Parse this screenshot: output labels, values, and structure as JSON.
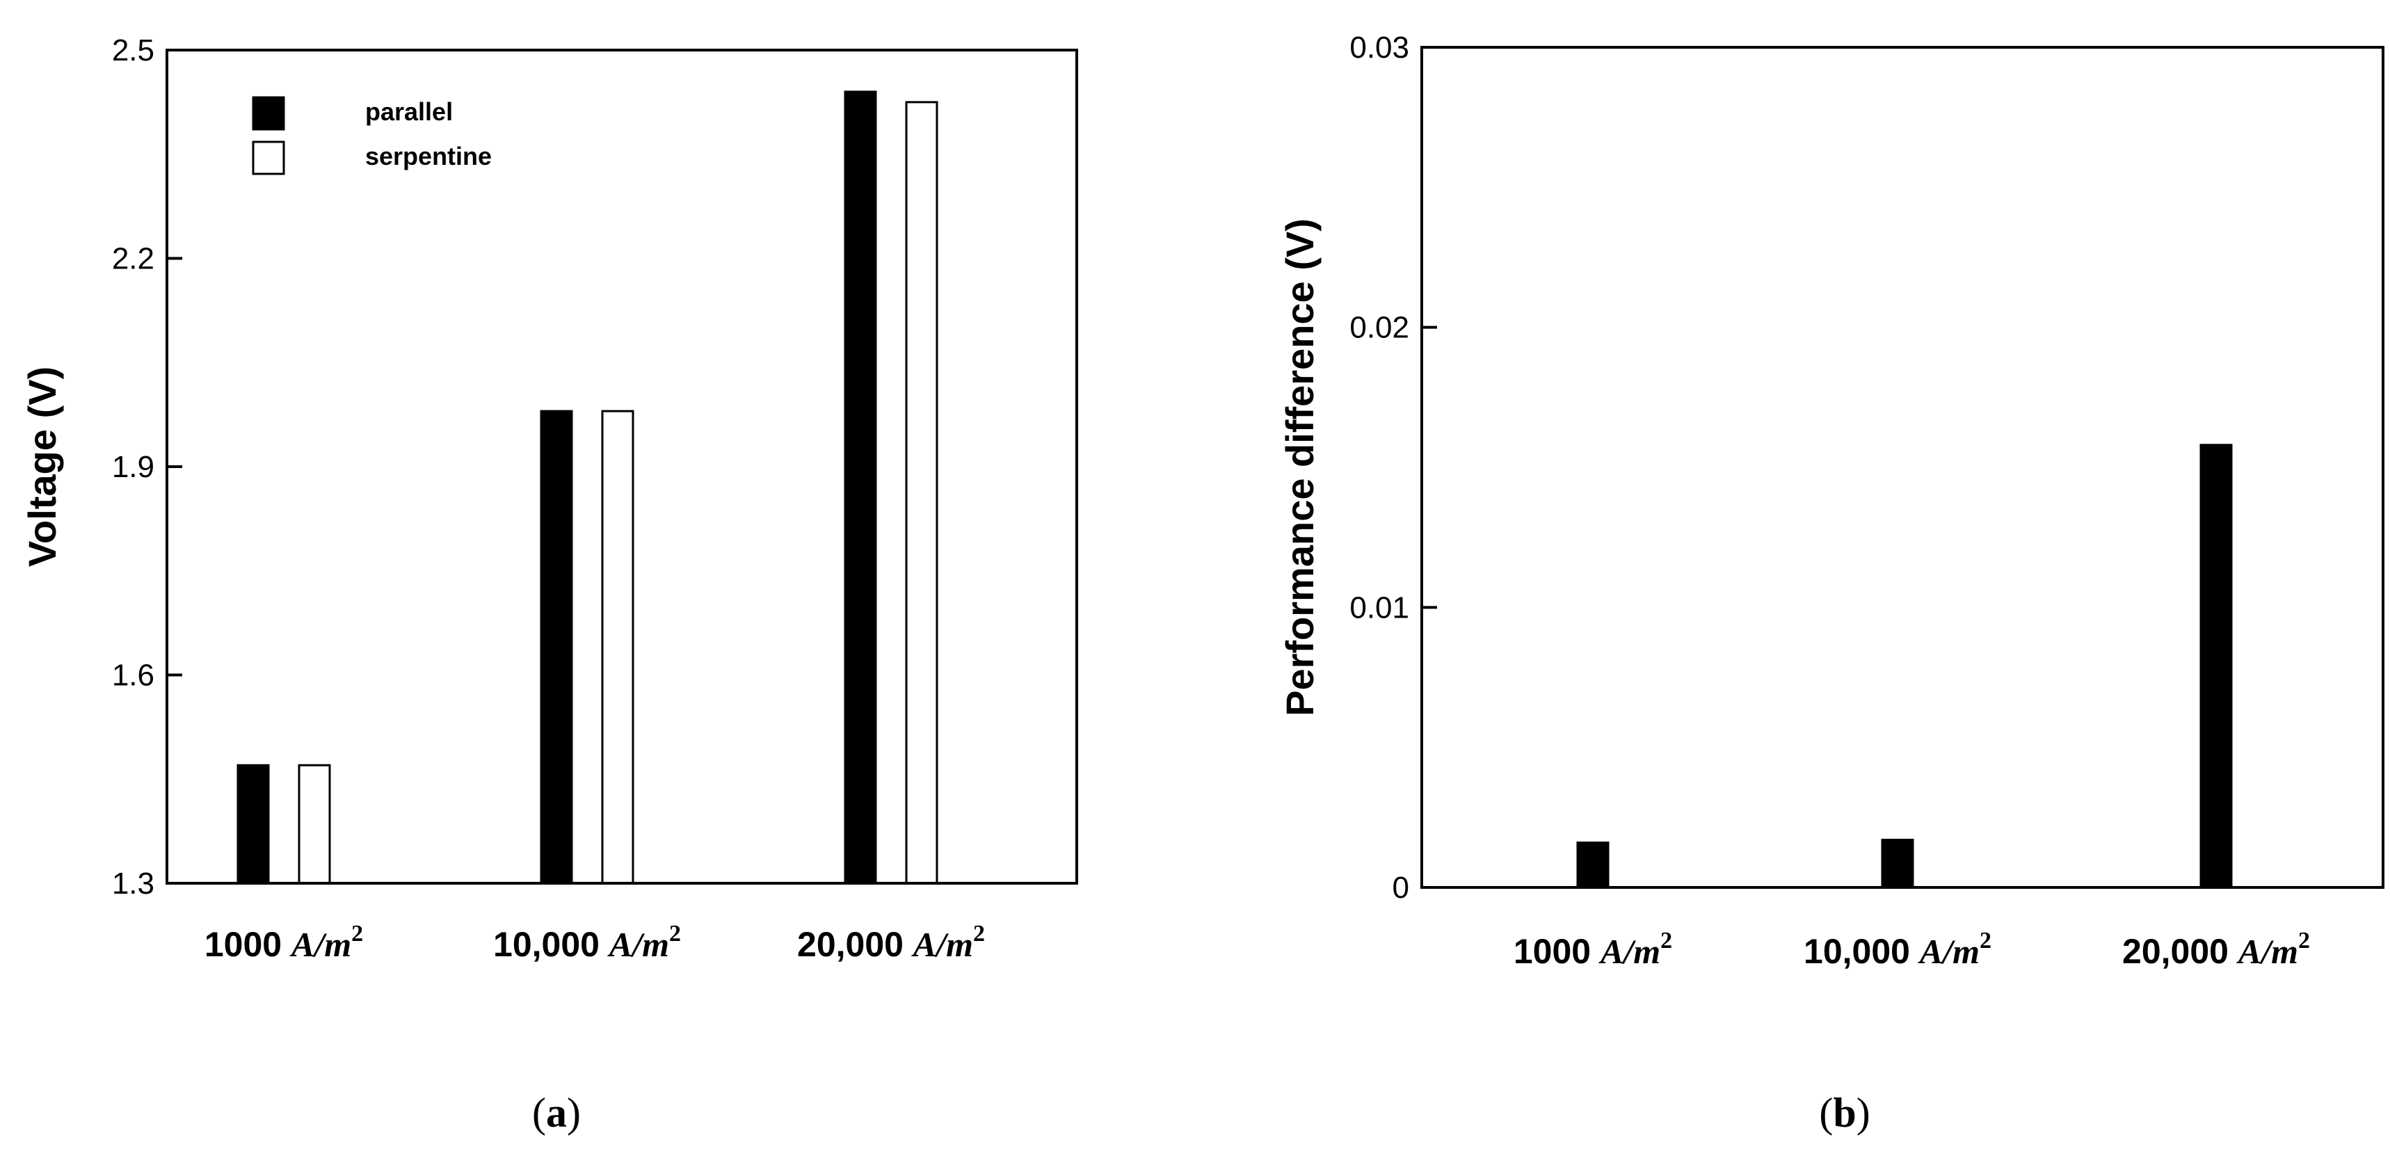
{
  "chart_data": [
    {
      "type": "bar",
      "panel": "(a)",
      "ylabel": "Voltage (V)",
      "ylim": [
        1.3,
        2.5
      ],
      "yticks": [
        "1.3",
        "1.6",
        "1.9",
        "2.2",
        "2.5"
      ],
      "categories": [
        "1000 A/m²",
        "10,000 A/m²",
        "20,000 A/m²"
      ],
      "category_parts": [
        {
          "num": "1000",
          "unit": "A/m",
          "sup": "2"
        },
        {
          "num": "10,000",
          "unit": "A/m",
          "sup": "2"
        },
        {
          "num": "20,000",
          "unit": "A/m",
          "sup": "2"
        }
      ],
      "series": [
        {
          "name": "parallel",
          "fill": "#000000",
          "values": [
            1.47,
            1.98,
            2.44
          ]
        },
        {
          "name": "serpentine",
          "fill": "#ffffff",
          "values": [
            1.47,
            1.98,
            2.425
          ]
        }
      ],
      "legend": "top-left",
      "grid": false
    },
    {
      "type": "bar",
      "panel": "(b)",
      "ylabel": "Performance difference (V)",
      "ylim": [
        0,
        0.03
      ],
      "yticks": [
        "0",
        "0.01",
        "0.02",
        "0.03"
      ],
      "categories": [
        "1000 A/m²",
        "10,000 A/m²",
        "20,000 A/m²"
      ],
      "category_parts": [
        {
          "num": "1000",
          "unit": "A/m",
          "sup": "2"
        },
        {
          "num": "10,000",
          "unit": "A/m",
          "sup": "2"
        },
        {
          "num": "20,000",
          "unit": "A/m",
          "sup": "2"
        }
      ],
      "series": [
        {
          "fill": "#000000",
          "values": [
            0.0016,
            0.0017,
            0.0158
          ]
        }
      ],
      "grid": false
    }
  ]
}
